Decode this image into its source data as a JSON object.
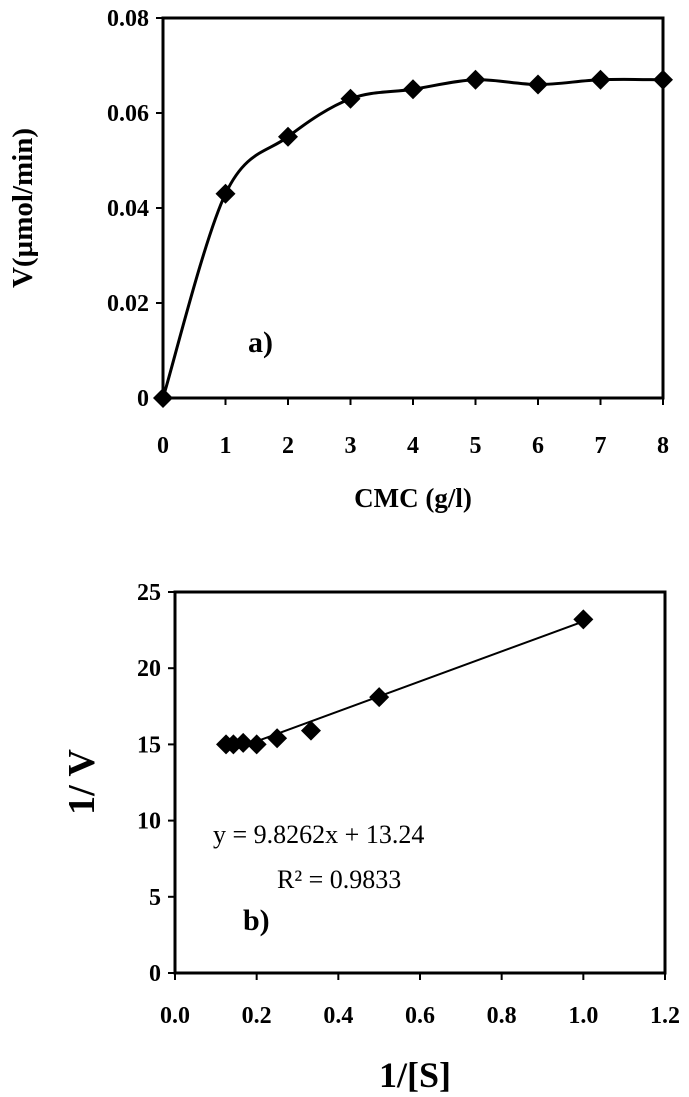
{
  "chart_data": [
    {
      "type": "line",
      "panel_label": "a)",
      "xlabel": "CMC  (g/l)",
      "ylabel": "V(µmol/min)",
      "xlim": [
        0,
        8
      ],
      "ylim": [
        0,
        0.08
      ],
      "x_ticks": [
        "0",
        "1",
        "2",
        "3",
        "4",
        "5",
        "6",
        "7",
        "8"
      ],
      "y_ticks": [
        "0",
        "0.02",
        "0.04",
        "0.06",
        "0.08"
      ],
      "grid": false,
      "marker": "diamond",
      "smooth": true,
      "x": [
        0,
        1,
        2,
        3,
        4,
        5,
        6,
        7,
        8
      ],
      "y": [
        0,
        0.043,
        0.055,
        0.063,
        0.065,
        0.067,
        0.066,
        0.067,
        0.067
      ]
    },
    {
      "type": "scatter",
      "panel_label": "b)",
      "xlabel": "1/[S]",
      "ylabel": "1/ V",
      "xlim": [
        0,
        1.2
      ],
      "ylim": [
        0,
        25
      ],
      "x_ticks": [
        "0.0",
        "0.2",
        "0.4",
        "0.6",
        "0.8",
        "1.0",
        "1.2"
      ],
      "y_ticks": [
        "0",
        "5",
        "10",
        "15",
        "20",
        "25"
      ],
      "grid": false,
      "marker": "diamond",
      "x": [
        0.125,
        0.143,
        0.167,
        0.2,
        0.25,
        0.333,
        0.5,
        1.0
      ],
      "y": [
        15.0,
        15.0,
        15.1,
        15.0,
        15.4,
        15.9,
        18.1,
        23.2
      ],
      "trendline": {
        "slope": 9.8262,
        "intercept": 13.24,
        "x_range": [
          0.2,
          1.0
        ],
        "equation": "y = 9.8262x   + 13.24",
        "r_squared": "R² = 0.9833"
      }
    }
  ]
}
